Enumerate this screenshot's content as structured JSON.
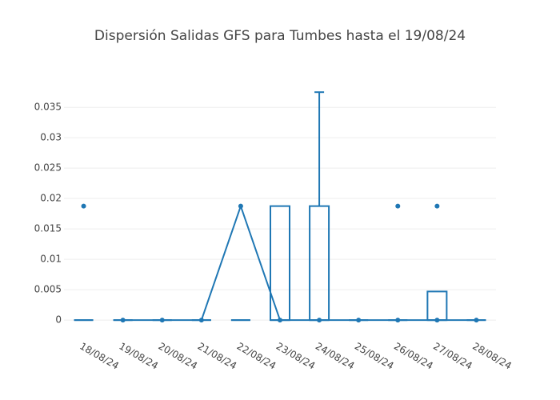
{
  "chart_data": {
    "type": "box",
    "title": "Dispersión Salidas GFS para Tumbes hasta el 19/08/24",
    "categories": [
      "18/08/24",
      "19/08/24",
      "20/08/24",
      "21/08/24",
      "22/08/24",
      "23/08/24",
      "24/08/24",
      "25/08/24",
      "26/08/24",
      "27/08/24",
      "28/08/24"
    ],
    "box": {
      "color": "#1f77b4",
      "min": [
        0,
        0,
        0,
        0,
        0,
        0,
        0,
        0,
        0,
        0,
        0
      ],
      "q1": [
        0,
        0,
        0,
        0,
        0,
        0,
        0,
        0,
        0,
        0,
        0
      ],
      "median": [
        0,
        0,
        0,
        0,
        0,
        0,
        0,
        0,
        0,
        0,
        0
      ],
      "q3": [
        0,
        0,
        0,
        0,
        0,
        0.01875,
        0.01875,
        0,
        0,
        0.0047,
        0
      ],
      "max": [
        0,
        0,
        0,
        0,
        0,
        0.01875,
        0.0375,
        0,
        0,
        0.0047,
        0
      ],
      "outliers": [
        [
          0.01875
        ],
        [],
        [],
        [],
        [],
        [],
        [],
        [],
        [
          0.01875
        ],
        [
          0.01875
        ],
        []
      ]
    },
    "line": {
      "color": "#1f77b4",
      "x": [
        "19/08/24",
        "20/08/24",
        "21/08/24",
        "22/08/24",
        "23/08/24",
        "24/08/24",
        "25/08/24",
        "26/08/24",
        "27/08/24",
        "28/08/24"
      ],
      "values": [
        0,
        0,
        0,
        0.01875,
        0,
        0,
        0,
        0,
        0,
        0
      ]
    },
    "ylim": [
      -0.0013,
      0.0395
    ],
    "yticks": [
      0,
      0.005,
      0.01,
      0.015,
      0.02,
      0.025,
      0.03,
      0.035
    ],
    "grid": true
  }
}
